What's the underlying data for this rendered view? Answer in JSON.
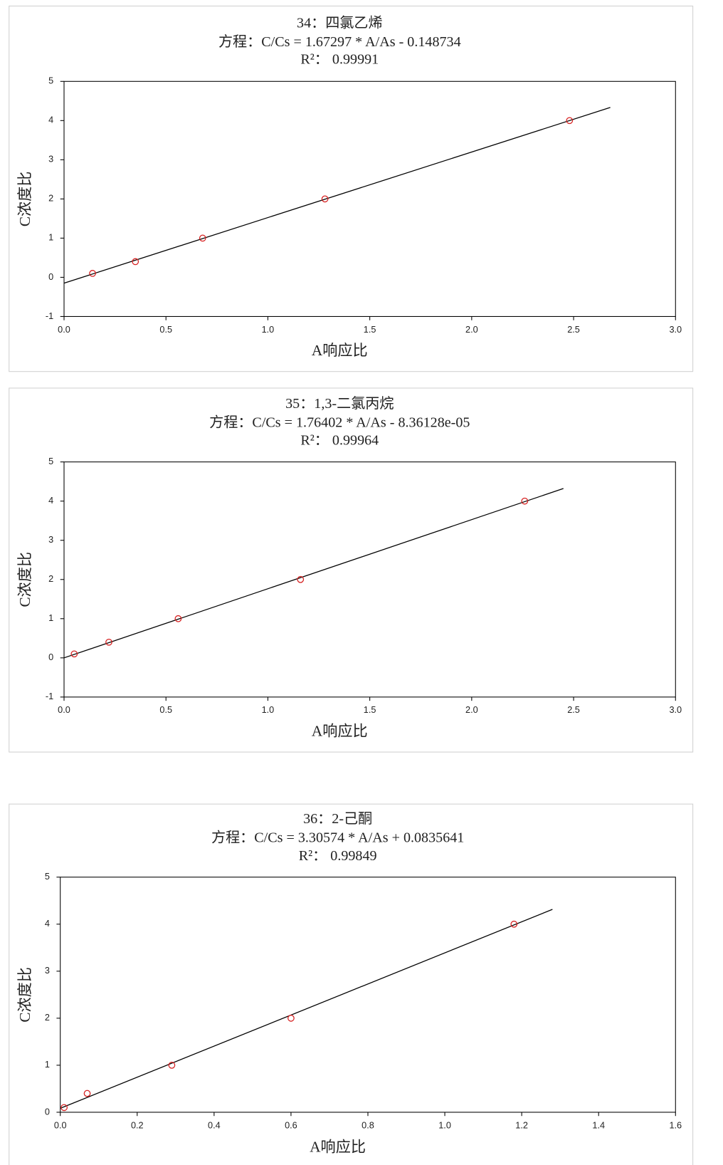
{
  "chart_data": [
    {
      "type": "scatter",
      "title": "34：四氯乙烯",
      "subtitle": "方程：C/Cs =  1.67297 * A/As - 0.148734",
      "r_squared": "R²：  0.99991",
      "xlabel": "A响应比",
      "ylabel": "C浓度比",
      "x": [
        0.14,
        0.35,
        0.68,
        1.28,
        2.48
      ],
      "values": [
        0.1,
        0.4,
        1,
        2,
        4
      ],
      "color": "#d62020",
      "fit_line": {
        "x": [
          0,
          2.68
        ],
        "values": [
          -0.149,
          4.335
        ],
        "color": "#000000"
      },
      "xlim": [
        0,
        3
      ],
      "xticks": [
        {
          "value": 0,
          "label": "0.0"
        },
        0.5,
        {
          "value": 1,
          "label": "1.0"
        },
        1.5,
        {
          "value": 2,
          "label": "2.0"
        },
        2.5,
        {
          "value": 3,
          "label": "3.0"
        }
      ],
      "ylim": [
        -1,
        5
      ],
      "yticks": [
        -1,
        0,
        1,
        2,
        3,
        4,
        5
      ]
    },
    {
      "type": "scatter",
      "title": "35：1,3-二氯丙烷",
      "subtitle": "方程：C/Cs =  1.76402 * A/As - 8.36128e-05",
      "r_squared": "R²：  0.99964",
      "xlabel": "A响应比",
      "ylabel": "C浓度比",
      "x": [
        0.05,
        0.22,
        0.56,
        1.16,
        2.26
      ],
      "values": [
        0.1,
        0.4,
        1,
        2,
        4
      ],
      "color": "#d62020",
      "fit_line": {
        "x": [
          0,
          2.45
        ],
        "values": [
          0,
          4.322
        ],
        "color": "#000000"
      },
      "xlim": [
        0,
        3
      ],
      "xticks": [
        {
          "value": 0,
          "label": "0.0"
        },
        0.5,
        {
          "value": 1,
          "label": "1.0"
        },
        1.5,
        {
          "value": 2,
          "label": "2.0"
        },
        2.5,
        {
          "value": 3,
          "label": "3.0"
        }
      ],
      "ylim": [
        -1,
        5
      ],
      "yticks": [
        -1,
        0,
        1,
        2,
        3,
        4,
        5
      ]
    },
    {
      "type": "scatter",
      "title": "36：2-己酮",
      "subtitle": "方程：C/Cs = 3.30574 * A/As + 0.0835641",
      "r_squared": "R²：  0.99849",
      "xlabel": "A响应比",
      "ylabel": "C浓度比",
      "x": [
        0.01,
        0.07,
        0.29,
        0.6,
        1.18
      ],
      "values": [
        0.1,
        0.4,
        1,
        2,
        4
      ],
      "color": "#d62020",
      "fit_line": {
        "x": [
          0,
          1.28
        ],
        "values": [
          0.084,
          4.315
        ],
        "color": "#000000"
      },
      "xlim": [
        0,
        1.6
      ],
      "xticks": [
        {
          "value": 0,
          "label": "0.0"
        },
        0.2,
        0.4,
        0.6,
        0.8,
        {
          "value": 1,
          "label": "1.0"
        },
        1.2,
        1.4,
        1.6
      ],
      "ylim": [
        0,
        5
      ],
      "yticks": [
        0,
        1,
        2,
        3,
        4,
        5
      ]
    }
  ]
}
